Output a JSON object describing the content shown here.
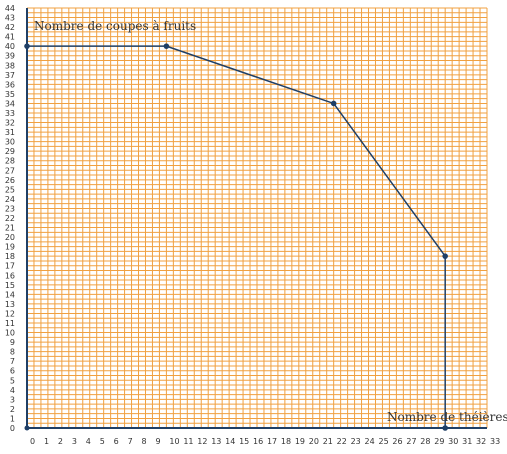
{
  "chart_data": {
    "type": "line",
    "xlabel": "Nombre de théières",
    "ylabel": "Nombre de coupes à fruits",
    "xlim": [
      0,
      33
    ],
    "ylim": [
      0,
      44
    ],
    "x_ticks": [
      0,
      1,
      2,
      3,
      4,
      5,
      6,
      7,
      8,
      9,
      10,
      11,
      12,
      13,
      14,
      15,
      16,
      17,
      18,
      19,
      20,
      21,
      22,
      23,
      24,
      25,
      26,
      27,
      28,
      29,
      30,
      31,
      32,
      33
    ],
    "y_ticks": [
      0,
      1,
      2,
      3,
      4,
      5,
      6,
      7,
      8,
      9,
      10,
      11,
      12,
      13,
      14,
      15,
      16,
      17,
      18,
      19,
      20,
      21,
      22,
      23,
      24,
      25,
      26,
      27,
      28,
      29,
      30,
      31,
      32,
      33,
      34,
      35,
      36,
      37,
      38,
      39,
      40,
      41,
      42,
      43,
      44
    ],
    "grid": true,
    "series": [
      {
        "points": [
          [
            0,
            40
          ],
          [
            10,
            40
          ],
          [
            22,
            34
          ],
          [
            30,
            18
          ],
          [
            30,
            0
          ]
        ]
      }
    ],
    "colors": {
      "grid": "#f0a040",
      "axis": "#1f3f66",
      "line": "#1f3f66",
      "point": "#1f3f66"
    }
  }
}
